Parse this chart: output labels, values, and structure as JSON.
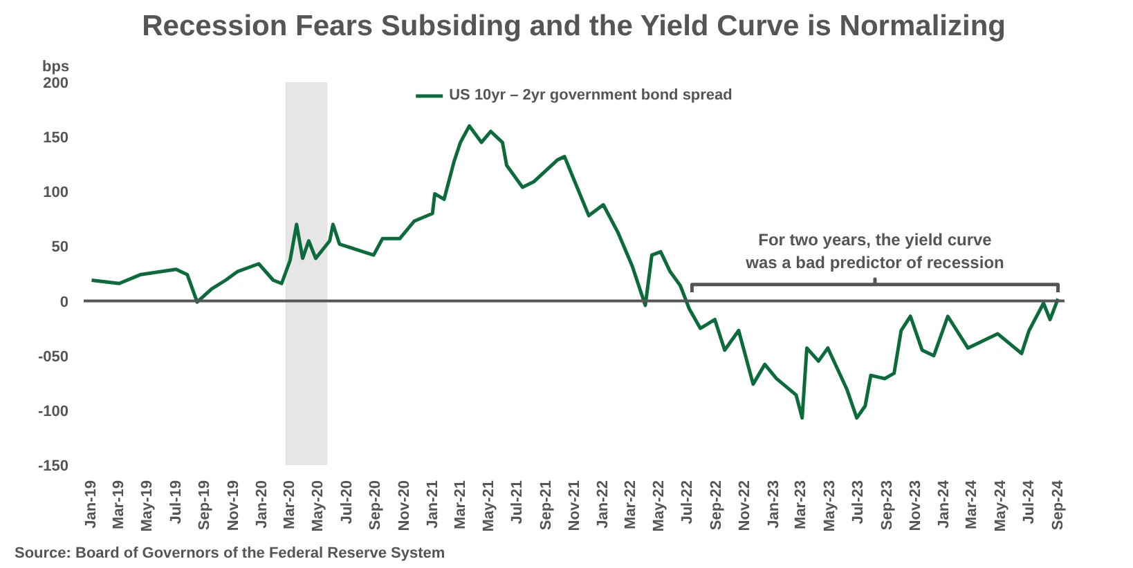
{
  "chart_data": {
    "type": "line",
    "title": "Recession Fears Subsiding and the Yield Curve is Normalizing",
    "ylabel": "bps",
    "annotations": [
      "Source: Board of Governors of the Federal Reserve System",
      {
        "text": "For two years, the yield curve\nwas a bad predictor of recession",
        "x": "2023-08-06",
        "y": 26
      }
    ],
    "x": [
      "2019-01-01",
      "2019-03-01",
      "2019-04-15",
      "2019-06-01",
      "2019-07-01",
      "2019-07-25",
      "2019-08-15",
      "2019-09-15",
      "2019-10-15",
      "2019-11-10",
      "2019-12-25",
      "2020-01-25",
      "2020-02-12",
      "2020-03-01",
      "2020-03-15",
      "2020-03-28",
      "2020-04-10",
      "2020-04-25",
      "2020-05-25",
      "2020-06-01",
      "2020-06-15",
      "2020-08-27",
      "2020-09-15",
      "2020-10-22",
      "2020-11-22",
      "2020-12-31",
      "2021-01-05",
      "2021-01-25",
      "2021-02-15",
      "2021-03-01",
      "2021-03-20",
      "2021-04-15",
      "2021-05-05",
      "2021-05-30",
      "2021-06-08",
      "2021-07-12",
      "2021-08-05",
      "2021-09-25",
      "2021-10-10",
      "2021-11-01",
      "2021-12-01",
      "2022-01-01",
      "2022-02-01",
      "2022-03-04",
      "2022-04-01",
      "2022-04-15",
      "2022-05-04",
      "2022-05-24",
      "2022-06-15",
      "2022-07-04",
      "2022-07-28",
      "2022-08-28",
      "2022-09-18",
      "2022-10-18",
      "2022-11-18",
      "2022-12-13",
      "2023-01-07",
      "2023-02-18",
      "2023-03-03",
      "2023-03-13",
      "2023-04-07",
      "2023-04-27",
      "2023-06-07",
      "2023-06-28",
      "2023-07-16",
      "2023-07-28",
      "2023-08-27",
      "2023-09-16",
      "2023-10-01",
      "2023-10-21",
      "2023-11-15",
      "2023-12-10",
      "2024-01-09",
      "2024-02-21",
      "2024-04-25",
      "2024-06-15",
      "2024-07-01",
      "2024-08-01",
      "2024-08-15",
      "2024-09-01"
    ],
    "series": [
      {
        "name": "US 10yr – 2yr government bond spread",
        "color": "#0b6b3a",
        "values": [
          19,
          16,
          24,
          27,
          29,
          24,
          -1,
          11,
          19,
          27,
          34,
          19,
          16,
          37,
          70,
          39,
          55,
          39,
          55,
          70,
          52,
          42,
          57,
          57,
          73,
          80,
          98,
          93,
          127,
          145,
          160,
          145,
          155,
          145,
          124,
          104,
          109,
          129,
          132,
          109,
          78,
          88,
          63,
          32,
          -4,
          42,
          45,
          27,
          14,
          -7,
          -25,
          -17,
          -45,
          -27,
          -76,
          -58,
          -71,
          -86,
          -107,
          -43,
          -55,
          -43,
          -81,
          -107,
          -96,
          -68,
          -71,
          -66,
          -27,
          -14,
          -45,
          -50,
          -14,
          -43,
          -30,
          -48,
          -27,
          -2,
          -17,
          2
        ]
      },
      {
        "color": "#555555",
        "x": [
          "2022-07-10",
          "2022-07-10",
          "2023-08-06",
          "2023-08-06",
          "2023-08-06",
          "2024-09-01",
          "2024-09-01"
        ],
        "values": [
          8,
          15,
          15,
          20,
          15,
          15,
          8
        ]
      }
    ],
    "xlim": [
      "2018-12-15",
      "2024-09-15"
    ],
    "xticks": [
      {
        "value": "2019-01-01",
        "label": "Jan-19"
      },
      {
        "value": "2019-03-01",
        "label": "Mar-19"
      },
      {
        "value": "2019-05-01",
        "label": "May-19"
      },
      {
        "value": "2019-07-01",
        "label": "Jul-19"
      },
      {
        "value": "2019-09-01",
        "label": "Sep-19"
      },
      {
        "value": "2019-11-01",
        "label": "Nov-19"
      },
      {
        "value": "2020-01-01",
        "label": "Jan-20"
      },
      {
        "value": "2020-03-01",
        "label": "Mar-20"
      },
      {
        "value": "2020-05-01",
        "label": "May-20"
      },
      {
        "value": "2020-07-01",
        "label": "Jul-20"
      },
      {
        "value": "2020-09-01",
        "label": "Sep-20"
      },
      {
        "value": "2020-11-01",
        "label": "Nov-20"
      },
      {
        "value": "2021-01-01",
        "label": "Jan-21"
      },
      {
        "value": "2021-03-01",
        "label": "Mar-21"
      },
      {
        "value": "2021-05-01",
        "label": "May-21"
      },
      {
        "value": "2021-07-01",
        "label": "Jul-21"
      },
      {
        "value": "2021-09-01",
        "label": "Sep-21"
      },
      {
        "value": "2021-11-01",
        "label": "Nov-21"
      },
      {
        "value": "2022-01-01",
        "label": "Jan-22"
      },
      {
        "value": "2022-03-01",
        "label": "Mar-22"
      },
      {
        "value": "2022-05-01",
        "label": "May-22"
      },
      {
        "value": "2022-07-01",
        "label": "Jul-22"
      },
      {
        "value": "2022-09-01",
        "label": "Sep-22"
      },
      {
        "value": "2022-11-01",
        "label": "Nov-22"
      },
      {
        "value": "2023-01-01",
        "label": "Jan-23"
      },
      {
        "value": "2023-03-01",
        "label": "Mar-23"
      },
      {
        "value": "2023-05-01",
        "label": "May-23"
      },
      {
        "value": "2023-07-01",
        "label": "Jul-23"
      },
      {
        "value": "2023-09-01",
        "label": "Sep-23"
      },
      {
        "value": "2023-11-01",
        "label": "Nov-23"
      },
      {
        "value": "2024-01-01",
        "label": "Jan-24"
      },
      {
        "value": "2024-03-01",
        "label": "Mar-24"
      },
      {
        "value": "2024-05-01",
        "label": "May-24"
      },
      {
        "value": "2024-07-01",
        "label": "Jul-24"
      },
      {
        "value": "2024-09-01",
        "label": "Sep-24"
      }
    ],
    "ylim": [
      -150,
      200
    ],
    "yticks": [
      200,
      150,
      100,
      50,
      0,
      {
        "value": -50,
        "label": "-050"
      },
      -100,
      -150
    ],
    "ref_lines": [
      {
        "axis": "y",
        "value": 0,
        "color": "#555555"
      }
    ],
    "bands": [
      {
        "axis": "x",
        "from": "2020-02-20",
        "to": "2020-05-20",
        "color": "#e6e6e6"
      }
    ],
    "legend": "top",
    "grid": false,
    "marker": "none",
    "line_style": "solid"
  }
}
